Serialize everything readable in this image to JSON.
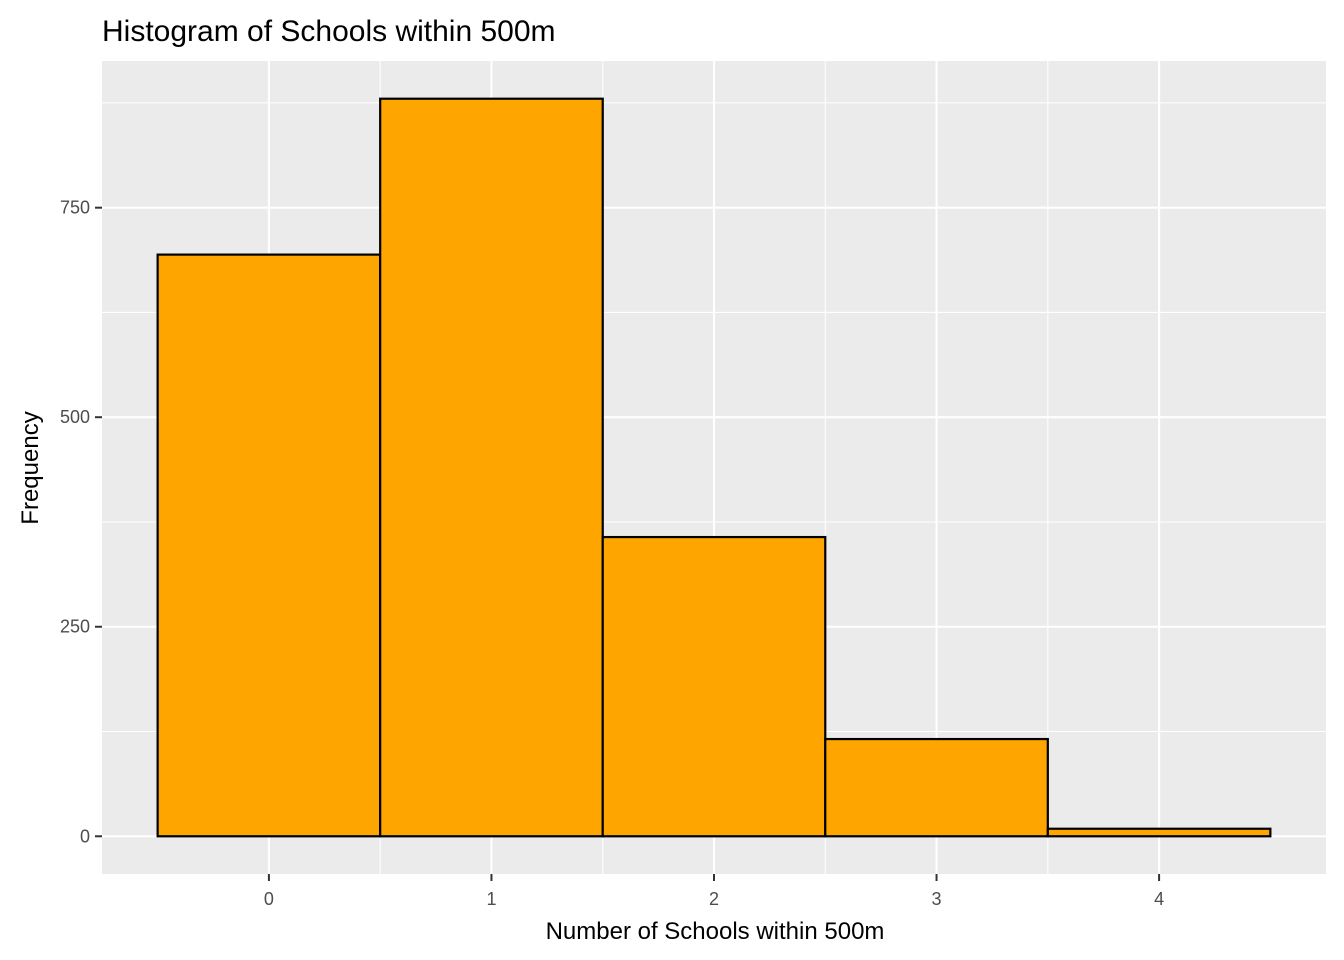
{
  "chart_data": {
    "type": "bar",
    "title": "Histogram of Schools within 500m",
    "xlabel": "Number of Schools within 500m",
    "ylabel": "Frequency",
    "categories": [
      "0",
      "1",
      "2",
      "3",
      "4"
    ],
    "bins": [
      {
        "x": 0,
        "count": 694
      },
      {
        "x": 1,
        "count": 880
      },
      {
        "x": 2,
        "count": 357
      },
      {
        "x": 3,
        "count": 116
      },
      {
        "x": 4,
        "count": 9
      }
    ],
    "values": [
      694,
      880,
      357,
      116,
      9
    ],
    "bin_width": 1,
    "xlim": [
      -0.75,
      4.75
    ],
    "ylim": [
      -45,
      925
    ],
    "x_ticks": [
      0,
      1,
      2,
      3,
      4
    ],
    "y_ticks": [
      0,
      250,
      500,
      750
    ],
    "grid": true,
    "legend": "none",
    "colors": {
      "bar_fill": "#FFA500",
      "bar_outline": "#000000",
      "panel_background": "#EBEBEB",
      "grid": "#FFFFFF"
    }
  }
}
